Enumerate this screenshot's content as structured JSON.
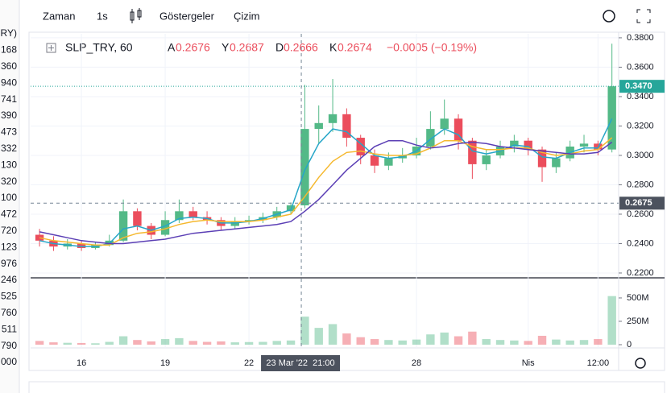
{
  "toolbar": {
    "interval_label": "Zaman",
    "interval": "1s",
    "indicators": "Göstergeler",
    "drawing": "Çizim"
  },
  "left_column": [
    "RY)",
    "168",
    "360",
    "940",
    "741",
    "390",
    "473",
    "332",
    "130",
    "320",
    "100",
    "472",
    "720",
    "123",
    "976",
    "246",
    "525",
    "760",
    "511",
    "790",
    "000"
  ],
  "chart_data": {
    "type": "candlestick",
    "legend": {
      "symbol": "SLP_TRY, 60",
      "open_label": "A",
      "open": "0.2676",
      "high_label": "Y",
      "high": "0.2687",
      "low_label": "D",
      "low": "0.2666",
      "close_label": "K",
      "close": "0.2674",
      "change": "−0.0005 (−0.19%)"
    },
    "x": [
      14.5,
      15,
      15.5,
      16,
      16.5,
      17,
      17.5,
      18,
      18.5,
      19,
      19.5,
      20,
      20.5,
      21,
      21.5,
      22,
      22.5,
      23,
      23.5,
      24,
      24.5,
      25,
      25.5,
      26,
      26.5,
      27,
      27.5,
      28,
      28.5,
      29,
      29.5,
      30,
      30.5,
      31,
      31.5,
      32,
      32.5,
      33,
      33.5,
      34,
      34.5,
      35
    ],
    "open": [
      0.246,
      0.242,
      0.238,
      0.24,
      0.237,
      0.239,
      0.242,
      0.262,
      0.252,
      0.246,
      0.256,
      0.262,
      0.258,
      0.256,
      0.252,
      0.255,
      0.256,
      0.258,
      0.262,
      0.266,
      0.318,
      0.322,
      0.328,
      0.312,
      0.3,
      0.293,
      0.298,
      0.3,
      0.306,
      0.318,
      0.325,
      0.31,
      0.294,
      0.3,
      0.306,
      0.31,
      0.304,
      0.292,
      0.298,
      0.306,
      0.308,
      0.304
    ],
    "high": [
      0.25,
      0.245,
      0.243,
      0.242,
      0.241,
      0.246,
      0.27,
      0.264,
      0.254,
      0.262,
      0.27,
      0.265,
      0.262,
      0.258,
      0.258,
      0.259,
      0.261,
      0.265,
      0.268,
      0.348,
      0.334,
      0.352,
      0.332,
      0.314,
      0.304,
      0.302,
      0.305,
      0.312,
      0.33,
      0.338,
      0.328,
      0.312,
      0.304,
      0.31,
      0.314,
      0.312,
      0.306,
      0.302,
      0.31,
      0.314,
      0.31,
      0.376
    ],
    "low": [
      0.238,
      0.235,
      0.236,
      0.235,
      0.236,
      0.238,
      0.241,
      0.249,
      0.243,
      0.245,
      0.254,
      0.256,
      0.253,
      0.249,
      0.25,
      0.253,
      0.254,
      0.256,
      0.26,
      0.264,
      0.308,
      0.316,
      0.306,
      0.294,
      0.288,
      0.29,
      0.295,
      0.298,
      0.304,
      0.314,
      0.304,
      0.284,
      0.29,
      0.298,
      0.302,
      0.3,
      0.282,
      0.288,
      0.296,
      0.302,
      0.3,
      0.302
    ],
    "close": [
      0.242,
      0.238,
      0.24,
      0.237,
      0.239,
      0.242,
      0.262,
      0.252,
      0.246,
      0.256,
      0.262,
      0.258,
      0.256,
      0.252,
      0.255,
      0.256,
      0.258,
      0.262,
      0.266,
      0.318,
      0.322,
      0.328,
      0.312,
      0.3,
      0.293,
      0.298,
      0.3,
      0.306,
      0.318,
      0.325,
      0.31,
      0.294,
      0.3,
      0.306,
      0.31,
      0.304,
      0.292,
      0.298,
      0.306,
      0.308,
      0.304,
      0.347
    ],
    "up_color": "#53b987",
    "down_color": "#eb4d5c",
    "series": [
      {
        "color": "#26a6c8",
        "values": [
          0.242,
          0.24,
          0.239,
          0.238,
          0.238,
          0.24,
          0.25,
          0.252,
          0.249,
          0.252,
          0.257,
          0.258,
          0.257,
          0.254,
          0.254,
          0.255,
          0.257,
          0.26,
          0.263,
          0.29,
          0.308,
          0.318,
          0.316,
          0.308,
          0.3,
          0.298,
          0.299,
          0.303,
          0.311,
          0.318,
          0.314,
          0.303,
          0.301,
          0.303,
          0.307,
          0.306,
          0.299,
          0.298,
          0.302,
          0.305,
          0.305,
          0.325
        ]
      },
      {
        "color": "#f5b82e",
        "values": [
          0.244,
          0.242,
          0.241,
          0.24,
          0.239,
          0.239,
          0.244,
          0.247,
          0.248,
          0.25,
          0.253,
          0.255,
          0.256,
          0.255,
          0.255,
          0.255,
          0.256,
          0.258,
          0.26,
          0.272,
          0.285,
          0.296,
          0.302,
          0.303,
          0.301,
          0.3,
          0.3,
          0.301,
          0.305,
          0.31,
          0.31,
          0.306,
          0.304,
          0.304,
          0.305,
          0.305,
          0.302,
          0.3,
          0.301,
          0.303,
          0.304,
          0.312
        ]
      },
      {
        "color": "#5b3fb5",
        "values": [
          0.248,
          0.246,
          0.244,
          0.242,
          0.241,
          0.24,
          0.24,
          0.241,
          0.242,
          0.243,
          0.245,
          0.247,
          0.248,
          0.249,
          0.25,
          0.251,
          0.252,
          0.253,
          0.255,
          0.262,
          0.27,
          0.28,
          0.29,
          0.298,
          0.306,
          0.31,
          0.31,
          0.307,
          0.305,
          0.306,
          0.308,
          0.309,
          0.308,
          0.306,
          0.305,
          0.304,
          0.303,
          0.302,
          0.301,
          0.301,
          0.302,
          0.309
        ]
      }
    ],
    "xlim": [
      14.18,
      35.24
    ],
    "xticks": [
      16,
      19,
      22,
      28,
      {
        "value": 32,
        "label": "Nis"
      },
      {
        "value": 34.5,
        "label": "12:00"
      }
    ],
    "ylim": [
      0.2167,
      0.3827
    ],
    "yticks": [
      {
        "value": 0.22,
        "label": "0.2200"
      },
      {
        "value": 0.24,
        "label": "0.2400"
      },
      {
        "value": 0.26,
        "label": "0.2600"
      },
      {
        "value": 0.28,
        "label": "0.2800"
      },
      {
        "value": 0.3,
        "label": "0.3000"
      },
      {
        "value": 0.32,
        "label": "0.3200"
      },
      {
        "value": 0.34,
        "label": "0.3400"
      },
      {
        "value": 0.36,
        "label": "0.3600"
      },
      {
        "value": 0.38,
        "label": "0.3800"
      }
    ],
    "grid": true,
    "last_price": {
      "value": 0.347,
      "label": "0.3470",
      "color": "#26a69a"
    },
    "crosshair": {
      "x": 23.875,
      "x_label": "23 Mar '22  21:00",
      "price": 0.2675,
      "price_label": "0.2675"
    },
    "volume": {
      "values": [
        40,
        25,
        20,
        18,
        15,
        30,
        90,
        50,
        35,
        60,
        70,
        40,
        30,
        35,
        25,
        28,
        30,
        40,
        45,
        300,
        180,
        220,
        120,
        80,
        60,
        50,
        45,
        55,
        110,
        130,
        90,
        140,
        60,
        50,
        45,
        40,
        95,
        55,
        45,
        50,
        60,
        520
      ],
      "ylim": [
        0,
        672
      ],
      "yticks": [
        0,
        {
          "value": 250,
          "label": "250M"
        },
        {
          "value": 500,
          "label": "500M"
        }
      ]
    }
  }
}
